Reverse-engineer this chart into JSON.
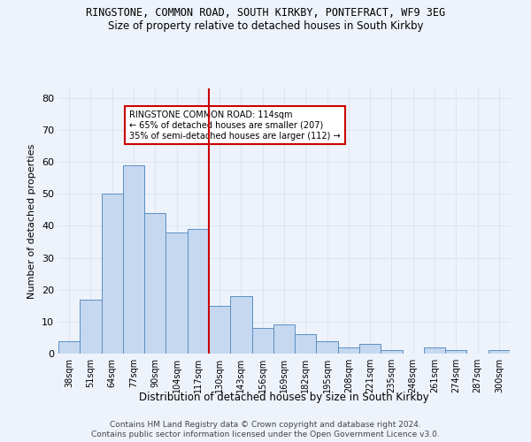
{
  "title1": "RINGSTONE, COMMON ROAD, SOUTH KIRKBY, PONTEFRACT, WF9 3EG",
  "title2": "Size of property relative to detached houses in South Kirkby",
  "xlabel": "Distribution of detached houses by size in South Kirkby",
  "ylabel": "Number of detached properties",
  "categories": [
    "38sqm",
    "51sqm",
    "64sqm",
    "77sqm",
    "90sqm",
    "104sqm",
    "117sqm",
    "130sqm",
    "143sqm",
    "156sqm",
    "169sqm",
    "182sqm",
    "195sqm",
    "208sqm",
    "221sqm",
    "235sqm",
    "248sqm",
    "261sqm",
    "274sqm",
    "287sqm",
    "300sqm"
  ],
  "values": [
    4,
    17,
    50,
    59,
    44,
    38,
    39,
    15,
    18,
    8,
    9,
    6,
    4,
    2,
    3,
    1,
    0,
    2,
    1,
    0,
    1
  ],
  "bar_color": "#c5d8f0",
  "bar_edge_color": "#5a8fc2",
  "vline_x": 6.5,
  "vline_color": "#cc0000",
  "annotation_text": "RINGSTONE COMMON ROAD: 114sqm\n← 65% of detached houses are smaller (207)\n35% of semi-detached houses are larger (112) →",
  "annotation_box_color": "#ffffff",
  "annotation_box_edge": "#cc0000",
  "ylim": [
    0,
    83
  ],
  "yticks": [
    0,
    10,
    20,
    30,
    40,
    50,
    60,
    70,
    80
  ],
  "grid_color": "#dce6f0",
  "footer1": "Contains HM Land Registry data © Crown copyright and database right 2024.",
  "footer2": "Contains public sector information licensed under the Open Government Licence v3.0.",
  "bg_color": "#eef3fb"
}
